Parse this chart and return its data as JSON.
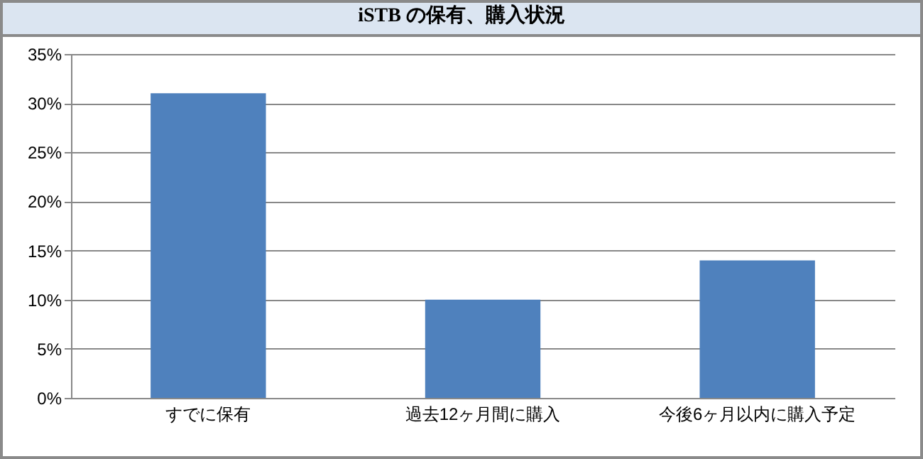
{
  "chart_data": {
    "type": "bar",
    "title": "iSTB の保有、購入状況",
    "categories": [
      "すでに保有",
      "過去12ヶ月間に購入",
      "今後6ヶ月以内に購入予定"
    ],
    "values": [
      31,
      10,
      14
    ],
    "color": "#4f81bd",
    "ylim": [
      0,
      35
    ],
    "yticks": [
      {
        "value": 0,
        "label": "0%"
      },
      {
        "value": 5,
        "label": "5%"
      },
      {
        "value": 10,
        "label": "10%"
      },
      {
        "value": 15,
        "label": "15%"
      },
      {
        "value": 20,
        "label": "20%"
      },
      {
        "value": 25,
        "label": "25%"
      },
      {
        "value": 30,
        "label": "30%"
      },
      {
        "value": 35,
        "label": "35%"
      }
    ],
    "grid": "y"
  }
}
